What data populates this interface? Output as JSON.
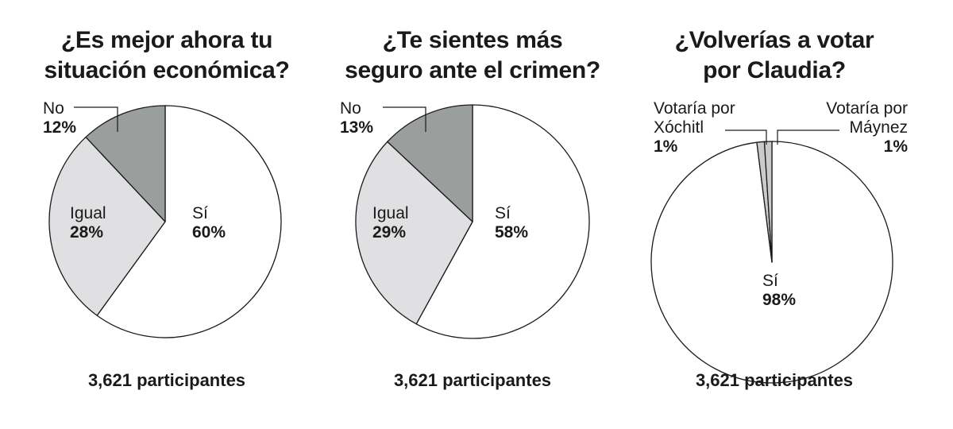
{
  "colors": {
    "si": "#ffffff",
    "igual": "#e0e0e2",
    "no": "#9a9e9c",
    "small": "#c9cccb",
    "stroke": "#1a1a1a"
  },
  "chart_data": [
    {
      "type": "pie",
      "title_lines": [
        "¿Es mejor ahora tu",
        "situación económica?"
      ],
      "slices": [
        {
          "name": "Sí",
          "value": 60,
          "label": "60%"
        },
        {
          "name": "Igual",
          "value": 28,
          "label": "28%"
        },
        {
          "name": "No",
          "value": 12,
          "label": "12%"
        }
      ],
      "footer": "3,621 participantes"
    },
    {
      "type": "pie",
      "title_lines": [
        "¿Te sientes más",
        "seguro ante el crimen?"
      ],
      "slices": [
        {
          "name": "Sí",
          "value": 58,
          "label": "58%"
        },
        {
          "name": "Igual",
          "value": 29,
          "label": "29%"
        },
        {
          "name": "No",
          "value": 13,
          "label": "13%"
        }
      ],
      "footer": "3,621 participantes"
    },
    {
      "type": "pie",
      "title_lines": [
        "¿Volverías a votar",
        "por Claudia?"
      ],
      "slices": [
        {
          "name": "Sí",
          "value": 98,
          "label": "98%"
        },
        {
          "name_lines": [
            "Votaría por",
            "Xóchitl"
          ],
          "value": 1,
          "label": "1%"
        },
        {
          "name_lines": [
            "Votaría por",
            "Máynez"
          ],
          "value": 1,
          "label": "1%"
        }
      ],
      "footer": "3,621 participantes"
    }
  ]
}
